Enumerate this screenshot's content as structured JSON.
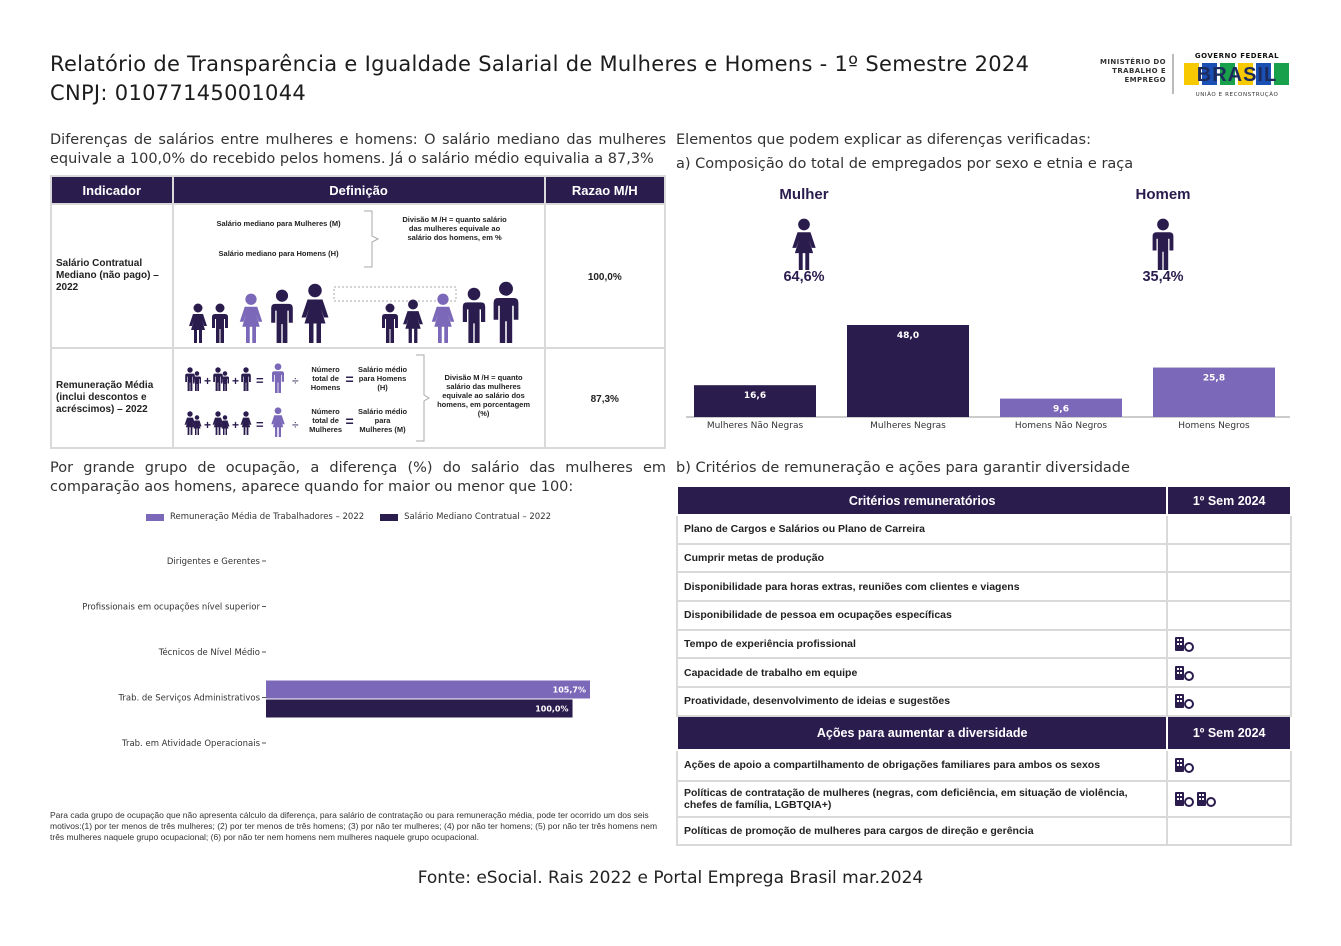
{
  "header": {
    "title": "Relatório de Transparência e Igualdade Salarial de Mulheres e Homens - 1º Semestre 2024",
    "cnpj": "CNPJ: 01077145001044",
    "ministry": "MINISTÉRIO DO TRABALHO E EMPREGO",
    "gov_label": "GOVERNO FEDERAL",
    "brasil": "BRASIL",
    "slogan": "UNIÃO E RECONSTRUÇÃO"
  },
  "left": {
    "intro": "Diferenças de salários entre mulheres e homens: O salário mediano das mulheres equivale a 100,0% do recebido pelos homens. Já o salário médio equivalia a 87,3%",
    "table": {
      "headers": [
        "Indicador",
        "Definição",
        "Razao M/H"
      ],
      "rows": [
        {
          "indicator": "Salário Contratual Mediano (não pago) – 2022",
          "def_w": "Salário mediano para Mulheres (M)",
          "def_m": "Salário mediano para Homens (H)",
          "def_div": "Divisão M /H = quanto salário das mulheres equivale ao salário dos homens, em %",
          "ratio": "100,0%"
        },
        {
          "indicator": "Remuneração Média (inclui descontos e acréscimos) – 2022",
          "total_men": "Número total de Homens",
          "avg_men": "Salário médio para Homens (H)",
          "total_women": "Número total de Mulheres",
          "avg_women": "Salário médio para Mulheres (M)",
          "def_div": "Divisão M /H = quanto salário das mulheres equivale ao salário dos homens, em porcentagem (%)",
          "ratio": "87,3%"
        }
      ]
    },
    "occupation_intro": "Por grande grupo de ocupação, a diferença (%) do salário das mulheres em comparação aos homens, aparece quando for maior ou menor que 100:",
    "footnote": "Para cada grupo de ocupação que não apresenta cálculo da diferença, para salário de contratação ou para remuneração média, pode ter ocorrido um dos seis motivos:(1) por ter menos de três mulheres; (2) por ter menos de três homens; (3) por não ter mulheres; (4) por não ter homens; (5) por não ter três homens nem três mulheres naquele grupo ocupacional; (6) por não ter nem homens nem mulheres naquele grupo ocupacional."
  },
  "right": {
    "intro": "Elementos que podem explicar as diferenças verificadas:",
    "sub_a": "a) Composição do total de empregados por sexo e etnia e raça",
    "women_label": "Mulher",
    "women_pct": "64,6%",
    "men_label": "Homem",
    "men_pct": "35,4%",
    "sub_b": "b) Critérios de remuneração e ações para garantir diversidade",
    "criteria_header": "Critérios remuneratórios",
    "sem_header": "1º Sem 2024",
    "criteria": [
      {
        "label": "Plano de Cargos e Salários ou Plano de Carreira",
        "icons": 0
      },
      {
        "label": "Cumprir metas de produção",
        "icons": 0
      },
      {
        "label": "Disponibilidade para horas extras, reuniões com clientes e viagens",
        "icons": 0
      },
      {
        "label": "Disponibilidade de pessoa em ocupações específicas",
        "icons": 0
      },
      {
        "label": "Tempo de experiência profissional",
        "icons": 1
      },
      {
        "label": "Capacidade de trabalho em equipe",
        "icons": 1
      },
      {
        "label": "Proatividade, desenvolvimento de ideias e sugestões",
        "icons": 1
      }
    ],
    "actions_header": "Ações para aumentar a diversidade",
    "actions": [
      {
        "label": "Ações de apoio a compartilhamento de obrigações familiares para ambos os sexos",
        "icons": 1
      },
      {
        "label": "Políticas de contratação de mulheres (negras, com deficiência, em situação de violência, chefes de família, LGBTQIA+)",
        "icons": 2
      },
      {
        "label": "Políticas de promoção de mulheres para cargos de direção e gerência",
        "icons": 0
      }
    ]
  },
  "footer": "Fonte: eSocial. Rais 2022 e Portal Emprega Brasil mar.2024",
  "colors": {
    "dark": "#2b1c4e",
    "light": "#7c68b8"
  },
  "chart_data": [
    {
      "type": "bar",
      "categories": [
        "Mulheres Não Negras",
        "Mulheres Negras",
        "Homens Não Negros",
        "Homens Negros"
      ],
      "values": [
        16.6,
        48.0,
        9.6,
        25.8
      ],
      "value_labels": [
        "16,6",
        "48,0",
        "9,6",
        "25,8"
      ],
      "colors": [
        "#2b1c4e",
        "#2b1c4e",
        "#7c68b8",
        "#7c68b8"
      ],
      "ylim": [
        0,
        48
      ]
    },
    {
      "type": "bar",
      "orientation": "horizontal",
      "categories": [
        "Dirigentes e Gerentes",
        "Profissionais em ocupações nível superior",
        "Técnicos de Nível Médio",
        "Trab. de Serviços Administrativos",
        "Trab. em Atividade Operacionais"
      ],
      "series": [
        {
          "name": "Remuneração Média de Trabalhadores – 2022",
          "color": "#7c68b8",
          "values": [
            null,
            null,
            null,
            105.7,
            null
          ],
          "labels": [
            "",
            "",
            "",
            "105,7%",
            ""
          ]
        },
        {
          "name": "Salário Mediano Contratual – 2022",
          "color": "#2b1c4e",
          "values": [
            null,
            null,
            null,
            100.0,
            null
          ],
          "labels": [
            "",
            "",
            "",
            "100,0%",
            ""
          ]
        }
      ],
      "xlim": [
        0,
        120
      ]
    }
  ]
}
